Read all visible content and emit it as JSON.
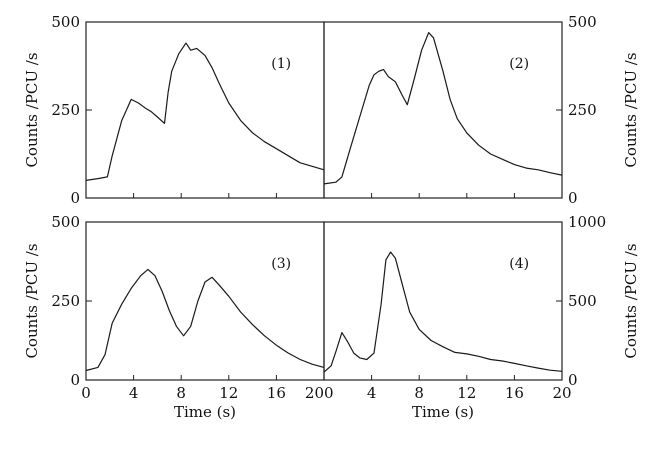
{
  "chart_data": [
    {
      "type": "line",
      "panel_label": "(1)",
      "xlabel": "",
      "ylabel": "Counts /PCU /s",
      "ylabel_side": "left",
      "xlim": [
        0,
        20
      ],
      "ylim": [
        0,
        500
      ],
      "yticks": [
        "0",
        "250",
        "500"
      ],
      "xticks": [],
      "x": [
        0,
        1,
        1.8,
        2.2,
        3,
        3.8,
        4.4,
        5,
        5.5,
        6,
        6.6,
        6.9,
        7.2,
        7.8,
        8.4,
        8.8,
        9.3,
        10,
        10.6,
        11.2,
        12,
        13,
        14,
        15,
        16,
        17,
        18,
        19,
        20
      ],
      "series": [
        {
          "values": [
            50,
            55,
            60,
            120,
            220,
            280,
            270,
            255,
            245,
            230,
            212,
            300,
            360,
            410,
            440,
            420,
            425,
            405,
            370,
            325,
            270,
            220,
            185,
            160,
            140,
            120,
            100,
            90,
            80
          ]
        }
      ]
    },
    {
      "type": "line",
      "panel_label": "(2)",
      "xlabel": "",
      "ylabel": "Counts /PCU /s",
      "ylabel_side": "right",
      "xlim": [
        0,
        20
      ],
      "ylim": [
        0,
        500
      ],
      "yticks": [
        "0",
        "250",
        "500"
      ],
      "xticks": [],
      "x": [
        0,
        1,
        1.5,
        2.2,
        3,
        3.8,
        4.2,
        4.6,
        5,
        5.4,
        6,
        6.6,
        7,
        7.6,
        8.2,
        8.8,
        9.2,
        10,
        10.6,
        11.2,
        12,
        13,
        14,
        15,
        16,
        17,
        18,
        19,
        20
      ],
      "series": [
        {
          "values": [
            40,
            45,
            60,
            140,
            230,
            320,
            350,
            360,
            365,
            345,
            330,
            290,
            265,
            340,
            420,
            470,
            455,
            360,
            280,
            225,
            185,
            150,
            125,
            110,
            95,
            85,
            80,
            72,
            65
          ]
        }
      ]
    },
    {
      "type": "line",
      "panel_label": "(3)",
      "xlabel": "Time (s)",
      "ylabel": "Counts /PCU /s",
      "ylabel_side": "left",
      "xlim": [
        0,
        20
      ],
      "ylim": [
        0,
        500
      ],
      "yticks": [
        "0",
        "250",
        "500"
      ],
      "xticks": [
        "0",
        "4",
        "8",
        "12",
        "16",
        "20"
      ],
      "x": [
        0,
        1,
        1.6,
        2.2,
        3,
        3.8,
        4.6,
        5.2,
        5.8,
        6.4,
        7,
        7.6,
        8.2,
        8.8,
        9.4,
        10,
        10.6,
        11.2,
        12,
        13,
        14,
        15,
        16,
        17,
        18,
        19,
        20
      ],
      "series": [
        {
          "values": [
            30,
            40,
            80,
            180,
            240,
            290,
            330,
            350,
            330,
            280,
            220,
            170,
            140,
            170,
            250,
            310,
            325,
            300,
            265,
            215,
            175,
            140,
            110,
            85,
            65,
            50,
            40
          ]
        }
      ]
    },
    {
      "type": "line",
      "panel_label": "(4)",
      "xlabel": "Time (s)",
      "ylabel": "Counts /PCU /s",
      "ylabel_side": "right",
      "xlim": [
        0,
        20
      ],
      "ylim": [
        0,
        1000
      ],
      "yticks": [
        "0",
        "500",
        "1000"
      ],
      "xticks": [
        "0",
        "4",
        "8",
        "12",
        "16",
        "20"
      ],
      "x": [
        0,
        0.6,
        1,
        1.5,
        2,
        2.5,
        3,
        3.6,
        4.2,
        4.8,
        5.2,
        5.6,
        6,
        6.6,
        7.2,
        8,
        9,
        10,
        11,
        12,
        13,
        14,
        15,
        16,
        17,
        18,
        19,
        20
      ],
      "series": [
        {
          "values": [
            50,
            90,
            180,
            300,
            240,
            170,
            140,
            130,
            170,
            480,
            760,
            810,
            770,
            600,
            430,
            320,
            250,
            210,
            175,
            165,
            150,
            130,
            120,
            105,
            90,
            75,
            62,
            55
          ]
        }
      ]
    }
  ]
}
